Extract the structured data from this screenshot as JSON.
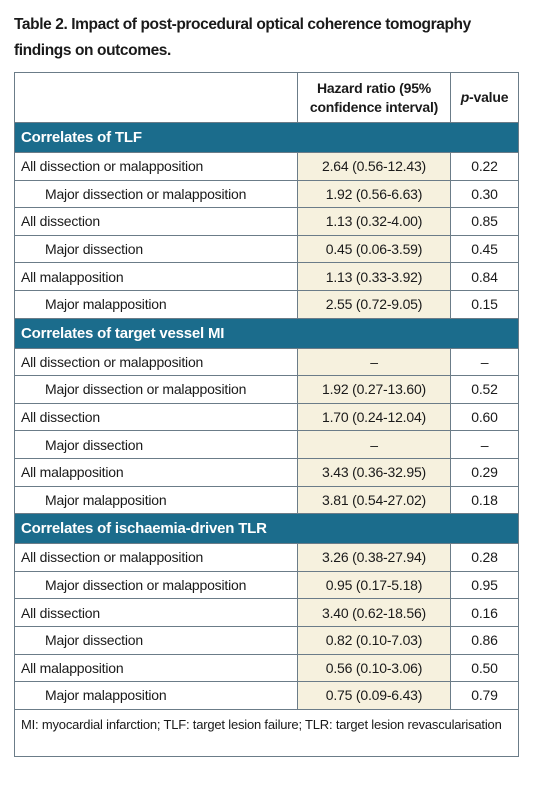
{
  "title": "Table 2. Impact of post-procedural optical coherence tomography findings on outcomes.",
  "table": {
    "header": {
      "hazard_ratio": "Hazard ratio (95% confidence interval)",
      "p_value_italic": "p",
      "p_value_rest": "-value"
    },
    "sections": [
      {
        "title": "Correlates of TLF",
        "groups": [
          {
            "label": "All dissection or malapposition",
            "hazard_ratio": "2.64 (0.56-12.43)",
            "p_value": "0.22",
            "sub": {
              "label": "Major dissection or malapposition",
              "hazard_ratio": "1.92 (0.56-6.63)",
              "p_value": "0.30"
            }
          },
          {
            "label": "All dissection",
            "hazard_ratio": "1.13 (0.32-4.00)",
            "p_value": "0.85",
            "sub": {
              "label": "Major dissection",
              "hazard_ratio": "0.45 (0.06-3.59)",
              "p_value": "0.45"
            }
          },
          {
            "label": "All malapposition",
            "hazard_ratio": "1.13 (0.33-3.92)",
            "p_value": "0.84",
            "sub": {
              "label": "Major malapposition",
              "hazard_ratio": "2.55 (0.72-9.05)",
              "p_value": "0.15"
            }
          }
        ]
      },
      {
        "title": "Correlates of target vessel MI",
        "groups": [
          {
            "label": "All dissection or malapposition",
            "hazard_ratio": "–",
            "p_value": "–",
            "sub": {
              "label": "Major dissection or malapposition",
              "hazard_ratio": "1.92 (0.27-13.60)",
              "p_value": "0.52"
            }
          },
          {
            "label": "All dissection",
            "hazard_ratio": "1.70 (0.24-12.04)",
            "p_value": "0.60",
            "sub": {
              "label": "Major dissection",
              "hazard_ratio": "–",
              "p_value": "–"
            }
          },
          {
            "label": "All malapposition",
            "hazard_ratio": "3.43 (0.36-32.95)",
            "p_value": "0.29",
            "sub": {
              "label": "Major malapposition",
              "hazard_ratio": "3.81 (0.54-27.02)",
              "p_value": "0.18"
            }
          }
        ]
      },
      {
        "title": "Correlates of ischaemia-driven TLR",
        "groups": [
          {
            "label": "All dissection or malapposition",
            "hazard_ratio": "3.26 (0.38-27.94)",
            "p_value": "0.28",
            "sub": {
              "label": "Major dissection or malapposition",
              "hazard_ratio": "0.95 (0.17-5.18)",
              "p_value": "0.95"
            }
          },
          {
            "label": "All dissection",
            "hazard_ratio": "3.40 (0.62-18.56)",
            "p_value": "0.16",
            "sub": {
              "label": "Major dissection",
              "hazard_ratio": "0.82 (0.10-7.03)",
              "p_value": "0.86"
            }
          },
          {
            "label": "All malapposition",
            "hazard_ratio": "0.56 (0.10-3.06)",
            "p_value": "0.50",
            "sub": {
              "label": "Major malapposition",
              "hazard_ratio": "0.75 (0.09-6.43)",
              "p_value": "0.79"
            }
          }
        ]
      }
    ],
    "footnote": "MI: myocardial infarction; TLF: target lesion failure; TLR: target lesion revascularisation"
  }
}
